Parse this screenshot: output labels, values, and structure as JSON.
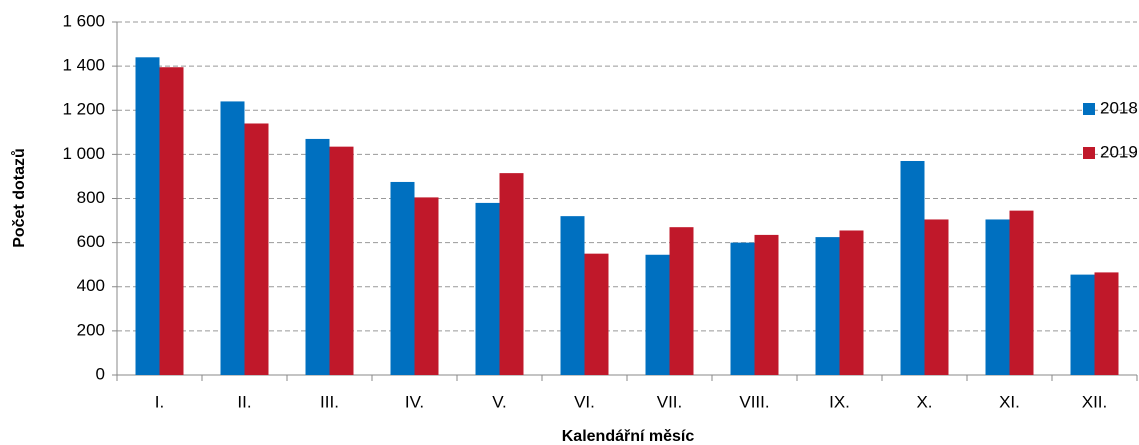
{
  "chart_data": {
    "type": "bar",
    "x_label": "Kalendářní měsíc",
    "y_label": "Počet dotazů",
    "categories": [
      "I.",
      "II.",
      "III.",
      "IV.",
      "V.",
      "VI.",
      "VII.",
      "VIII.",
      "IX.",
      "X.",
      "XI.",
      "XII."
    ],
    "series": [
      {
        "name": "2018",
        "color": "#0070c0",
        "values": [
          1440,
          1240,
          1070,
          875,
          780,
          720,
          545,
          600,
          625,
          970,
          705,
          455
        ]
      },
      {
        "name": "2019",
        "color": "#c0182a",
        "values": [
          1395,
          1140,
          1035,
          805,
          915,
          550,
          670,
          635,
          655,
          705,
          745,
          465
        ]
      }
    ],
    "ylim": [
      0,
      1600
    ],
    "yticks": [
      0,
      200,
      400,
      600,
      800,
      {
        "value": 1000,
        "label": "1 000"
      },
      {
        "value": 1200,
        "label": "1 200"
      },
      {
        "value": 1400,
        "label": "1 400"
      },
      {
        "value": 1600,
        "label": "1 600"
      }
    ],
    "grid": true,
    "legend": "right"
  }
}
